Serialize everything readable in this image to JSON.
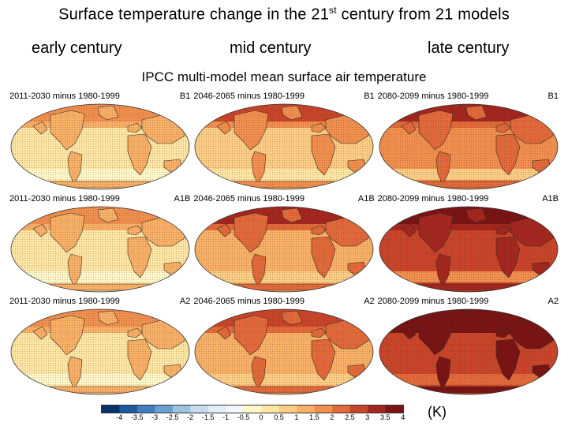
{
  "slide": {
    "title_main": "Surface temperature change in the 21",
    "title_sup": "st",
    "title_tail": " century from 21 models",
    "columns": [
      "early century",
      "mid century",
      "late century"
    ]
  },
  "figure": {
    "title": "IPCC multi-model mean surface air temperature",
    "panels": [
      [
        {
          "period": "2011-2030 minus 1980-1999",
          "scenario": "B1",
          "level": 0.7
        },
        {
          "period": "2046-2065 minus 1980-1999",
          "scenario": "B1",
          "level": 1.4
        },
        {
          "period": "2080-2099 minus 1980-1999",
          "scenario": "B1",
          "level": 2.0
        }
      ],
      [
        {
          "period": "2011-2030 minus 1980-1999",
          "scenario": "A1B",
          "level": 0.8
        },
        {
          "period": "2046-2065 minus 1980-1999",
          "scenario": "A1B",
          "level": 1.9
        },
        {
          "period": "2080-2099 minus 1980-1999",
          "scenario": "A1B",
          "level": 3.0
        }
      ],
      [
        {
          "period": "2011-2030 minus 1980-1999",
          "scenario": "A2",
          "level": 0.7
        },
        {
          "period": "2046-2065 minus 1980-1999",
          "scenario": "A2",
          "level": 1.7
        },
        {
          "period": "2080-2099 minus 1980-1999",
          "scenario": "A2",
          "level": 3.4
        }
      ]
    ],
    "colorbar": {
      "labels": [
        "-4",
        "-3.5",
        "-3",
        "-2.5",
        "-2",
        "-1.5",
        "-1",
        "-0.5",
        "0",
        "0.5",
        "1",
        "1.5",
        "2",
        "2.5",
        "3",
        "3.5",
        "4"
      ],
      "colors": [
        "#08306b",
        "#1c5a9e",
        "#3f7fbd",
        "#6aa0cf",
        "#9cc2e0",
        "#c6dbed",
        "#e2eef7",
        "#f3f8fc",
        "#fff7c8",
        "#fde5a4",
        "#fbcd84",
        "#f8b067",
        "#f08f4e",
        "#e26a3a",
        "#c9452a",
        "#a4271f",
        "#7a1414"
      ],
      "units": "(K)"
    }
  }
}
